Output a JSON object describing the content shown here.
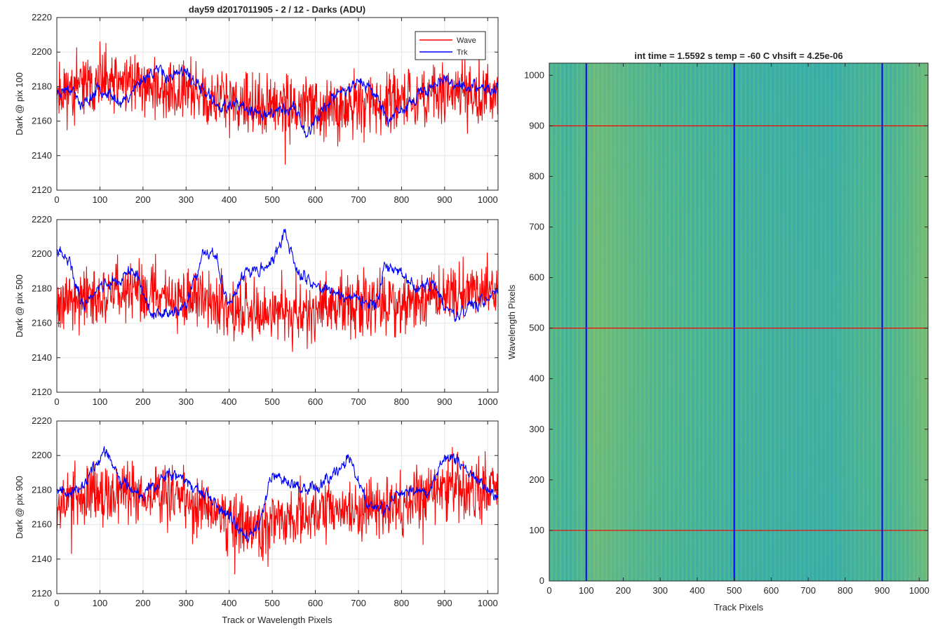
{
  "figure": {
    "background": "#ffffff"
  },
  "chart_data": [
    {
      "id": "pix100",
      "type": "line",
      "title": "day59 d2017011905 - 2 / 12 - Darks (ADU)",
      "xlabel": "",
      "ylabel": "Dark @ pix 100",
      "xlim": [
        0,
        1024
      ],
      "ylim": [
        2120,
        2220
      ],
      "xticks": [
        0,
        100,
        200,
        300,
        400,
        500,
        600,
        700,
        800,
        900,
        1000
      ],
      "yticks": [
        2120,
        2140,
        2160,
        2180,
        2200,
        2220
      ],
      "grid": true,
      "legend": {
        "position": "top-right",
        "entries": [
          "Wave",
          "Trk"
        ]
      },
      "series": [
        {
          "name": "Wave",
          "color": "#ff0000",
          "mean": 2175,
          "noise": 10,
          "seed": 11,
          "trend_x": [
            0,
            150,
            300,
            450,
            600,
            750,
            900,
            1024
          ],
          "trend_y": [
            2177,
            2184,
            2176,
            2168,
            2168,
            2170,
            2177,
            2178
          ]
        },
        {
          "name": "Trk",
          "color": "#0000ff",
          "mean": 2176,
          "noise": 2.5,
          "seed": 23,
          "trend_x": [
            0,
            30,
            60,
            100,
            150,
            200,
            230,
            260,
            300,
            330,
            380,
            420,
            460,
            500,
            550,
            580,
            620,
            650,
            700,
            740,
            770,
            820,
            880,
            940,
            1000,
            1024
          ],
          "trend_y": [
            2176,
            2180,
            2168,
            2180,
            2170,
            2185,
            2190,
            2186,
            2188,
            2180,
            2168,
            2169,
            2164,
            2165,
            2168,
            2152,
            2168,
            2175,
            2184,
            2176,
            2160,
            2170,
            2183,
            2181,
            2178,
            2180
          ]
        }
      ]
    },
    {
      "id": "pix500",
      "type": "line",
      "title": "",
      "xlabel": "",
      "ylabel": "Dark @ pix 500",
      "xlim": [
        0,
        1024
      ],
      "ylim": [
        2120,
        2220
      ],
      "xticks": [
        0,
        100,
        200,
        300,
        400,
        500,
        600,
        700,
        800,
        900,
        1000
      ],
      "yticks": [
        2120,
        2140,
        2160,
        2180,
        2200,
        2220
      ],
      "grid": true,
      "series": [
        {
          "name": "Wave",
          "color": "#ff0000",
          "mean": 2173,
          "noise": 10,
          "seed": 37,
          "trend_x": [
            0,
            150,
            300,
            450,
            600,
            750,
            900,
            1024
          ],
          "trend_y": [
            2172,
            2178,
            2176,
            2165,
            2168,
            2170,
            2175,
            2180
          ]
        },
        {
          "name": "Trk",
          "color": "#0000ff",
          "mean": 2180,
          "noise": 2.5,
          "seed": 41,
          "trend_x": [
            0,
            30,
            60,
            100,
            150,
            180,
            220,
            260,
            300,
            340,
            370,
            400,
            440,
            500,
            530,
            560,
            620,
            680,
            740,
            760,
            790,
            830,
            870,
            920,
            980,
            1024
          ],
          "trend_y": [
            2202,
            2195,
            2170,
            2182,
            2185,
            2192,
            2165,
            2165,
            2170,
            2200,
            2198,
            2170,
            2190,
            2195,
            2212,
            2188,
            2180,
            2175,
            2170,
            2190,
            2192,
            2180,
            2183,
            2163,
            2172,
            2180
          ]
        }
      ]
    },
    {
      "id": "pix900",
      "type": "line",
      "title": "",
      "xlabel": "Track or Wavelength Pixels",
      "ylabel": "Dark @ pix 900",
      "xlim": [
        0,
        1024
      ],
      "ylim": [
        2120,
        2220
      ],
      "xticks": [
        0,
        100,
        200,
        300,
        400,
        500,
        600,
        700,
        800,
        900,
        1000
      ],
      "yticks": [
        2120,
        2140,
        2160,
        2180,
        2200,
        2220
      ],
      "grid": true,
      "series": [
        {
          "name": "Wave",
          "color": "#ff0000",
          "mean": 2172,
          "noise": 10,
          "seed": 53,
          "trend_x": [
            0,
            150,
            300,
            450,
            600,
            750,
            900,
            1024
          ],
          "trend_y": [
            2174,
            2180,
            2174,
            2160,
            2168,
            2168,
            2182,
            2180
          ]
        },
        {
          "name": "Trk",
          "color": "#0000ff",
          "mean": 2180,
          "noise": 2.5,
          "seed": 67,
          "trend_x": [
            0,
            50,
            80,
            110,
            150,
            200,
            260,
            320,
            380,
            440,
            470,
            500,
            540,
            580,
            620,
            660,
            680,
            720,
            760,
            800,
            860,
            900,
            940,
            1000,
            1024
          ],
          "trend_y": [
            2182,
            2178,
            2190,
            2203,
            2185,
            2178,
            2190,
            2182,
            2168,
            2155,
            2160,
            2190,
            2185,
            2180,
            2185,
            2195,
            2198,
            2172,
            2168,
            2180,
            2178,
            2200,
            2195,
            2180,
            2176
          ]
        }
      ]
    },
    {
      "id": "image",
      "type": "heatmap",
      "title": "int time = 1.5592 s    temp = -60 C    vhsift = 4.25e-06",
      "xlabel": "Track Pixels",
      "ylabel": "Wavelength Pixels",
      "xlim": [
        0,
        1024
      ],
      "ylim": [
        0,
        1024
      ],
      "xticks": [
        0,
        100,
        200,
        300,
        400,
        500,
        600,
        700,
        800,
        900,
        1000
      ],
      "yticks": [
        0,
        100,
        200,
        300,
        400,
        500,
        600,
        700,
        800,
        900,
        1000
      ],
      "colormap": "parula",
      "base_color": "#3bb0a0",
      "marker_columns": {
        "values": [
          100,
          500,
          900
        ],
        "color": "#0000ff"
      },
      "marker_rows": {
        "values": [
          100,
          500,
          900
        ],
        "color": "#ff0000"
      }
    }
  ]
}
